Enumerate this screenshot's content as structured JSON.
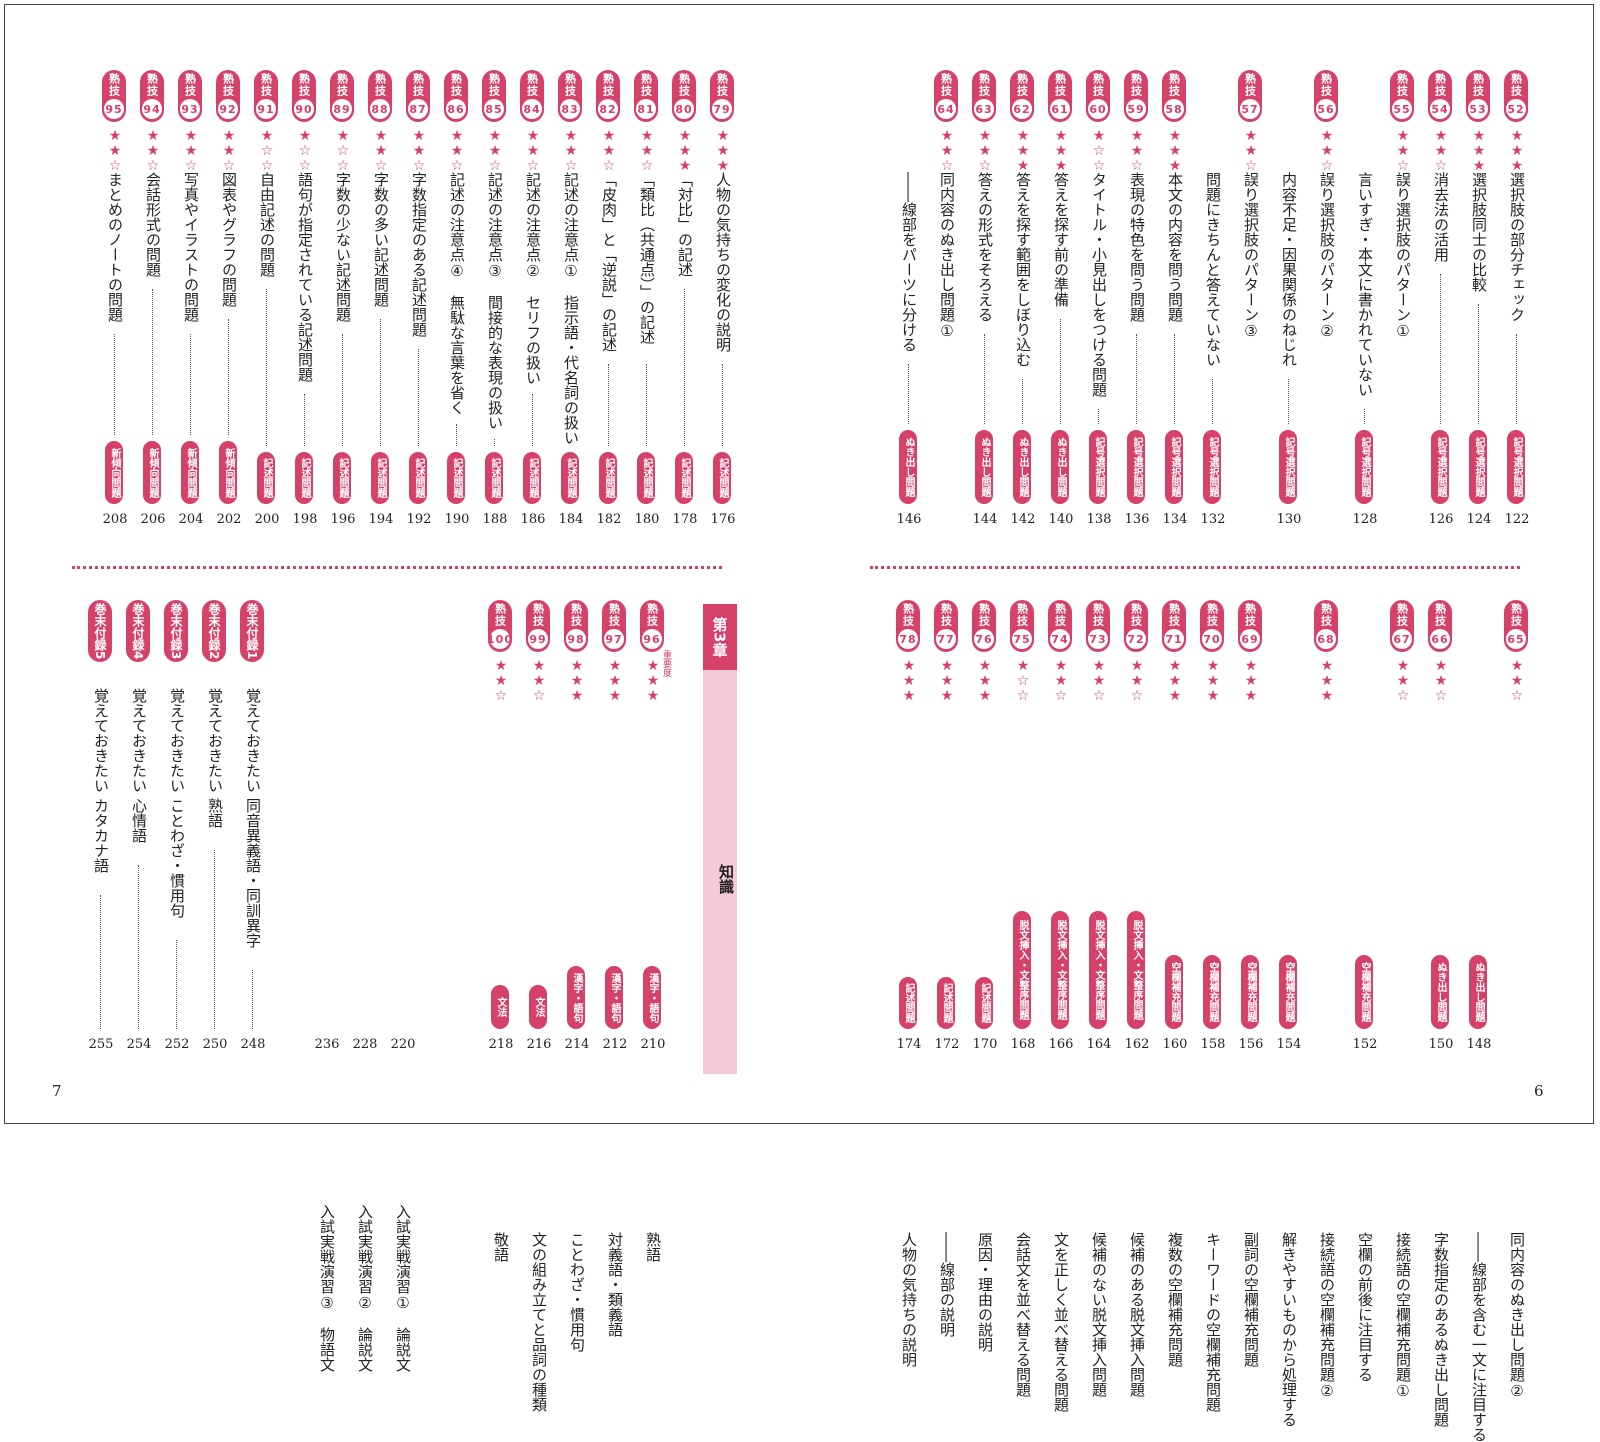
{
  "folios": {
    "left": "7",
    "right": "6"
  },
  "chapter": {
    "head": "第3章",
    "name": "知識",
    "legend": "重要度"
  },
  "left_top": [
    {
      "n": "79",
      "st": 3,
      "t": "人物の気持ちの変化の説明",
      "tag": "記述問題",
      "p": "176"
    },
    {
      "n": "80",
      "st": 3,
      "t": "「対比」の記述",
      "tag": "記述問題",
      "p": "178"
    },
    {
      "n": "81",
      "st": 2,
      "t": "「類比（共通点）」の記述",
      "tag": "記述問題",
      "p": "180"
    },
    {
      "n": "82",
      "st": 2,
      "t": "「皮肉」と「逆説」の記述",
      "tag": "記述問題",
      "p": "182"
    },
    {
      "n": "83",
      "st": 2,
      "t": "記述の注意点①　指示語・代名詞の扱い",
      "tag": "記述問題",
      "p": "184"
    },
    {
      "n": "84",
      "st": 2,
      "t": "記述の注意点②　セリフの扱い",
      "tag": "記述問題",
      "p": "186"
    },
    {
      "n": "85",
      "st": 2,
      "t": "記述の注意点③　間接的な表現の扱い",
      "tag": "記述問題",
      "p": "188"
    },
    {
      "n": "86",
      "st": 2,
      "t": "記述の注意点④　無駄な言葉を省く",
      "tag": "記述問題",
      "p": "190"
    },
    {
      "n": "87",
      "st": 2,
      "t": "字数指定のある記述問題",
      "tag": "記述問題",
      "p": "192"
    },
    {
      "n": "88",
      "st": 2,
      "t": "字数の多い記述問題",
      "tag": "記述問題",
      "p": "194"
    },
    {
      "n": "89",
      "st": 1,
      "t": "字数の少ない記述問題",
      "tag": "記述問題",
      "p": "196"
    },
    {
      "n": "90",
      "st": 1,
      "t": "語句が指定されている記述問題",
      "tag": "記述問題",
      "p": "198"
    },
    {
      "n": "91",
      "st": 1,
      "t": "自由記述の問題",
      "tag": "記述問題",
      "p": "200"
    },
    {
      "n": "92",
      "st": 2,
      "t": "図表やグラフの問題",
      "tag": "新傾向問題",
      "p": "202"
    },
    {
      "n": "93",
      "st": 2,
      "t": "写真やイラストの問題",
      "tag": "新傾向問題",
      "p": "204"
    },
    {
      "n": "94",
      "st": 2,
      "t": "会話形式の問題",
      "tag": "新傾向問題",
      "p": "206"
    },
    {
      "n": "95",
      "st": 2,
      "t": "まとめのノートの問題",
      "tag": "新傾向問題",
      "p": "208"
    }
  ],
  "left_bottom_juku": [
    {
      "n": "96",
      "st": 3,
      "t": "熟語",
      "tag": "漢字・語句",
      "p": "210"
    },
    {
      "n": "97",
      "st": 3,
      "t": "対義語・類義語",
      "tag": "漢字・語句",
      "p": "212"
    },
    {
      "n": "98",
      "st": 3,
      "t": "ことわざ・慣用句",
      "tag": "漢字・語句",
      "p": "214"
    },
    {
      "n": "99",
      "st": 2,
      "t": "文の組み立てと品詞の種類",
      "tag": "文法",
      "p": "216"
    },
    {
      "n": "100",
      "st": 2,
      "t": "敬語",
      "tag": "文法",
      "p": "218"
    }
  ],
  "left_bottom_plain": [
    {
      "t": "入試実戦演習①　論説文",
      "p": "220"
    },
    {
      "t": "入試実戦演習②　論説文",
      "p": "228"
    },
    {
      "t": "入試実戦演習③　物語文",
      "p": "236"
    }
  ],
  "appendix": [
    {
      "label": "巻末付録1",
      "t": "覚えておきたい 同音異義語・同訓異字",
      "p": "248"
    },
    {
      "label": "巻末付録2",
      "t": "覚えておきたい 熟語",
      "p": "250"
    },
    {
      "label": "巻末付録3",
      "t": "覚えておきたい ことわざ・慣用句",
      "p": "252"
    },
    {
      "label": "巻末付録4",
      "t": "覚えておきたい 心情語",
      "p": "254"
    },
    {
      "label": "巻末付録5",
      "t": "覚えておきたい カタカナ語",
      "p": "255"
    }
  ],
  "right_top": [
    {
      "n": "52",
      "st": 3,
      "t": "選択肢の部分チェック",
      "tag": "記号選択問題",
      "p": "122"
    },
    {
      "n": "53",
      "st": 3,
      "t": "選択肢同士の比較",
      "tag": "記号選択問題",
      "p": "124"
    },
    {
      "n": "54",
      "st": 2,
      "t": "消去法の活用",
      "tag": "記号選択問題",
      "p": "126"
    },
    {
      "n": "55",
      "st": 2,
      "t": "誤り選択肢のパターン①",
      "tag": "",
      "p": ""
    },
    {
      "n": "",
      "st": 0,
      "t": "言いすぎ・本文に書かれていない",
      "tag": "記号選択問題",
      "p": "128"
    },
    {
      "n": "56",
      "st": 2,
      "t": "誤り選択肢のパターン②",
      "tag": "",
      "p": ""
    },
    {
      "n": "",
      "st": 0,
      "t": "内容不足・因果関係のねじれ",
      "tag": "記号選択問題",
      "p": "130"
    },
    {
      "n": "57",
      "st": 2,
      "t": "誤り選択肢のパターン③",
      "tag": "",
      "p": ""
    },
    {
      "n": "",
      "st": 0,
      "t": "問題にきちんと答えていない",
      "tag": "記号選択問題",
      "p": "132"
    },
    {
      "n": "58",
      "st": 3,
      "t": "本文の内容を問う問題",
      "tag": "記号選択問題",
      "p": "134"
    },
    {
      "n": "59",
      "st": 2,
      "t": "表現の特色を問う問題",
      "tag": "記号選択問題",
      "p": "136"
    },
    {
      "n": "60",
      "st": 1,
      "t": "タイトル・小見出しをつける問題",
      "tag": "記号選択問題",
      "p": "138"
    },
    {
      "n": "61",
      "st": 3,
      "t": "答えを探す前の準備",
      "tag": "ぬき出し問題",
      "p": "140"
    },
    {
      "n": "62",
      "st": 3,
      "t": "答えを探す範囲をしぼり込む",
      "tag": "ぬき出し問題",
      "p": "142"
    },
    {
      "n": "63",
      "st": 2,
      "t": "答えの形式をそろえる",
      "tag": "ぬき出し問題",
      "p": "144"
    },
    {
      "n": "64",
      "st": 2,
      "t": "同内容のぬき出し問題①",
      "tag": "",
      "p": ""
    },
    {
      "n": "",
      "st": 0,
      "t": "――線部をパーツに分ける",
      "tag": "ぬき出し問題",
      "p": "146"
    }
  ],
  "right_bottom": [
    {
      "n": "65",
      "st": 2,
      "t": "同内容のぬき出し問題②",
      "tag": "",
      "p": ""
    },
    {
      "n": "",
      "st": 0,
      "t": "――線部を含む一文に注目する",
      "tag": "ぬき出し問題",
      "p": "148"
    },
    {
      "n": "66",
      "st": 2,
      "t": "字数指定のあるぬき出し問題",
      "tag": "ぬき出し問題",
      "p": "150"
    },
    {
      "n": "67",
      "st": 2,
      "t": "接続語の空欄補充問題①",
      "tag": "",
      "p": ""
    },
    {
      "n": "",
      "st": 0,
      "t": "空欄の前後に注目する",
      "tag": "空欄補充問題",
      "p": "152"
    },
    {
      "n": "68",
      "st": 3,
      "t": "接続語の空欄補充問題②",
      "tag": "",
      "p": ""
    },
    {
      "n": "",
      "st": 0,
      "t": "解きやすいものから処理する",
      "tag": "空欄補充問題",
      "p": "154"
    },
    {
      "n": "69",
      "st": 3,
      "t": "副詞の空欄補充問題",
      "tag": "空欄補充問題",
      "p": "156"
    },
    {
      "n": "70",
      "st": 3,
      "t": "キーワードの空欄補充問題",
      "tag": "空欄補充問題",
      "p": "158"
    },
    {
      "n": "71",
      "st": 3,
      "t": "複数の空欄補充問題",
      "tag": "空欄補充問題",
      "p": "160"
    },
    {
      "n": "72",
      "st": 2,
      "t": "候補のある脱文挿入問題",
      "tag": "脱文挿入・文整序問題",
      "p": "162"
    },
    {
      "n": "73",
      "st": 2,
      "t": "候補のない脱文挿入問題",
      "tag": "脱文挿入・文整序問題",
      "p": "164"
    },
    {
      "n": "74",
      "st": 2,
      "t": "文を正しく並べ替える問題",
      "tag": "脱文挿入・文整序問題",
      "p": "166"
    },
    {
      "n": "75",
      "st": 1,
      "t": "会話文を並べ替える問題",
      "tag": "脱文挿入・文整序問題",
      "p": "168"
    },
    {
      "n": "76",
      "st": 3,
      "t": "原因・理由の説明",
      "tag": "記述問題",
      "p": "170"
    },
    {
      "n": "77",
      "st": 3,
      "t": "――線部の説明",
      "tag": "記述問題",
      "p": "172"
    },
    {
      "n": "78",
      "st": 3,
      "t": "人物の気持ちの説明",
      "tag": "記述問題",
      "p": "174"
    }
  ]
}
